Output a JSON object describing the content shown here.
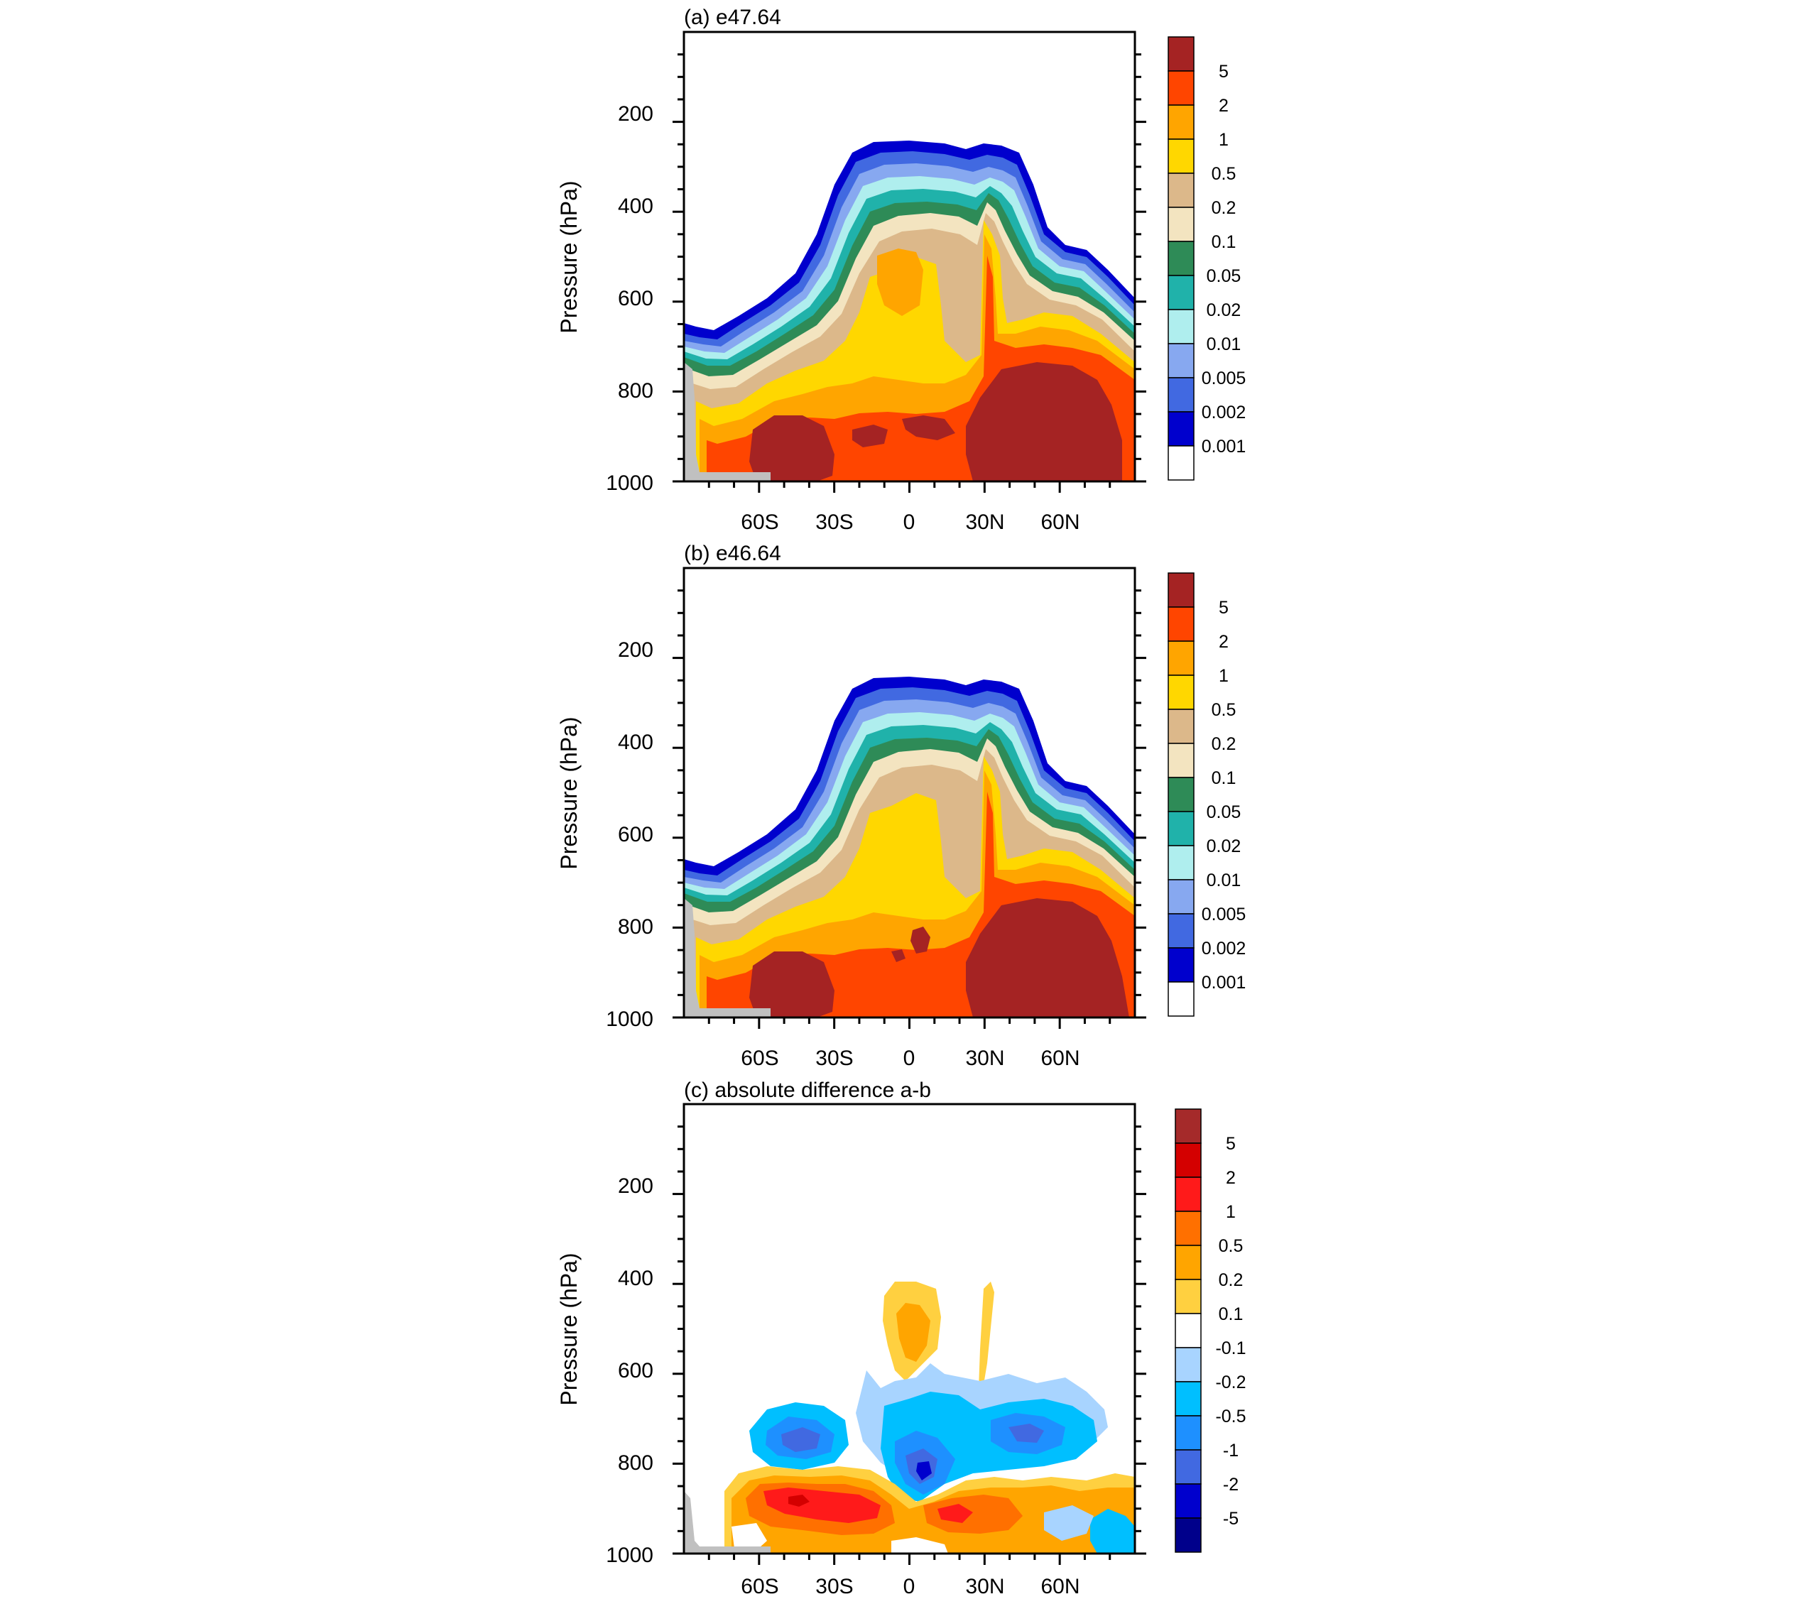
{
  "chart_data": [
    {
      "type": "contour",
      "title": "(a) e47.64",
      "ylabel": "Pressure (hPa)",
      "yticks": [
        "200",
        "400",
        "600",
        "800",
        "1000"
      ],
      "xticks": [
        "60S",
        "30S",
        "0",
        "30N",
        "60N"
      ],
      "y_axis_reversed": true,
      "colorbar": {
        "labels": [
          "5",
          "2",
          "1",
          "0.5",
          "0.2",
          "0.1",
          "0.05",
          "0.02",
          "0.01",
          "0.005",
          "0.002",
          "0.001"
        ],
        "colors": [
          "#a52323",
          "#ff4500",
          "#ffa500",
          "#ffd700",
          "#dcb88a",
          "#f3e4c0",
          "#2e8b57",
          "#20b2aa",
          "#afeeee",
          "#87a8f0",
          "#4169e1",
          "#0000cd",
          "#ffffff"
        ]
      }
    },
    {
      "type": "contour",
      "title": "(b) e46.64",
      "ylabel": "Pressure (hPa)",
      "yticks": [
        "200",
        "400",
        "600",
        "800",
        "1000"
      ],
      "xticks": [
        "60S",
        "30S",
        "0",
        "30N",
        "60N"
      ],
      "y_axis_reversed": true,
      "colorbar": {
        "labels": [
          "5",
          "2",
          "1",
          "0.5",
          "0.2",
          "0.1",
          "0.05",
          "0.02",
          "0.01",
          "0.005",
          "0.002",
          "0.001"
        ],
        "colors": [
          "#a52323",
          "#ff4500",
          "#ffa500",
          "#ffd700",
          "#dcb88a",
          "#f3e4c0",
          "#2e8b57",
          "#20b2aa",
          "#afeeee",
          "#87a8f0",
          "#4169e1",
          "#0000cd",
          "#ffffff"
        ]
      }
    },
    {
      "type": "contour",
      "title": "(c) absolute difference a-b",
      "ylabel": "Pressure (hPa)",
      "yticks": [
        "200",
        "400",
        "600",
        "800",
        "1000"
      ],
      "xticks": [
        "60S",
        "30S",
        "0",
        "30N",
        "60N"
      ],
      "y_axis_reversed": true,
      "colorbar": {
        "labels": [
          "5",
          "2",
          "1",
          "0.5",
          "0.2",
          "0.1",
          "-0.1",
          "-0.2",
          "-0.5",
          "-1",
          "-2",
          "-5"
        ],
        "colors": [
          "#a52a2a",
          "#d40000",
          "#ff1a1a",
          "#ff7000",
          "#ffa500",
          "#ffd040",
          "#ffffff",
          "#a8d4ff",
          "#00bfff",
          "#1e90ff",
          "#4169e1",
          "#0000cd",
          "#00008b"
        ]
      }
    }
  ],
  "colors": {
    "terrain": "#c0c0c0",
    "frame": "#000000"
  }
}
